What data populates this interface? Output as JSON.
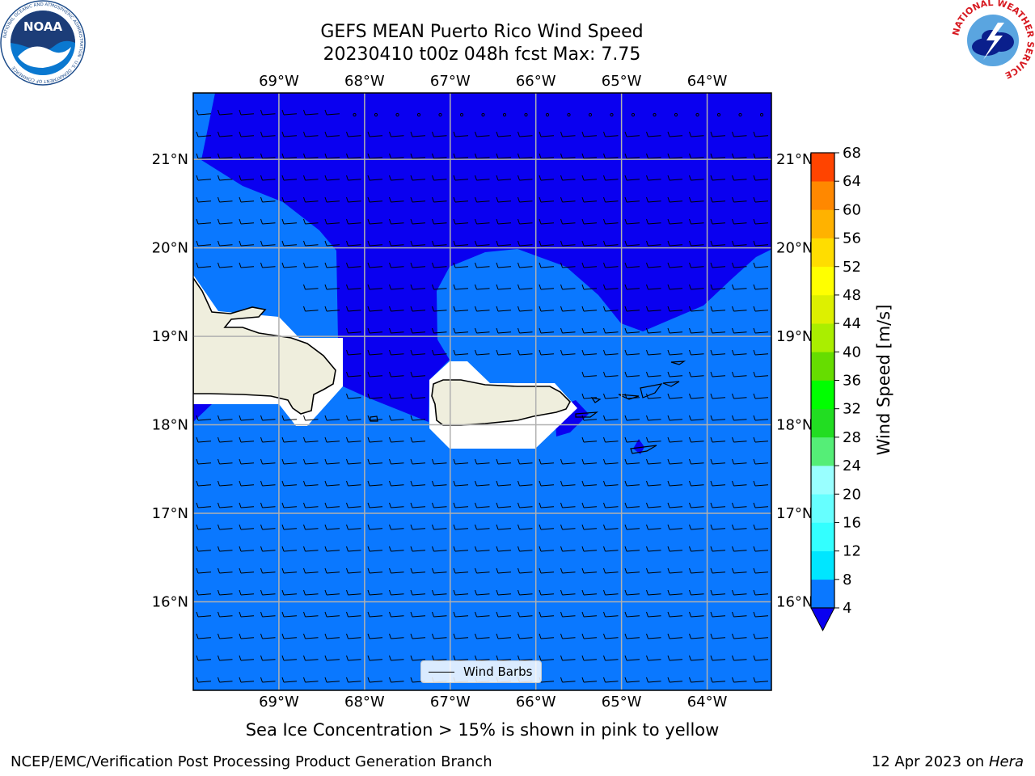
{
  "title": {
    "line1": "GEFS MEAN Puerto Rico Wind Speed",
    "line2": "20230410 t00z 048h fcst   Max: 7.75"
  },
  "map": {
    "lon_range": [
      -70.0,
      -63.25
    ],
    "lat_range": [
      15.0,
      21.75
    ],
    "lon_ticks": [
      {
        "value": -69,
        "label": "69°W"
      },
      {
        "value": -68,
        "label": "68°W"
      },
      {
        "value": -67,
        "label": "67°W"
      },
      {
        "value": -66,
        "label": "66°W"
      },
      {
        "value": -65,
        "label": "65°W"
      },
      {
        "value": -64,
        "label": "64°W"
      }
    ],
    "lat_ticks": [
      {
        "value": 21,
        "label": "21°N"
      },
      {
        "value": 20,
        "label": "20°N"
      },
      {
        "value": 19,
        "label": "19°N"
      },
      {
        "value": 18,
        "label": "18°N"
      },
      {
        "value": 17,
        "label": "17°N"
      },
      {
        "value": 16,
        "label": "16°N"
      }
    ],
    "grid": true,
    "colors": {
      "below_4": "#0a00f0",
      "band_4_8": "#0a78ff",
      "land": "#efeedd",
      "masked": "#ffffff",
      "grid": "#b0b0b0"
    }
  },
  "legend": {
    "label": "Wind Barbs",
    "position": "bottom-center"
  },
  "colorbar": {
    "label": "Wind Speed [m/s]",
    "ticks": [
      "68",
      "64",
      "60",
      "56",
      "52",
      "48",
      "44",
      "40",
      "36",
      "32",
      "28",
      "24",
      "20",
      "16",
      "12",
      "8",
      "4"
    ],
    "levels": [
      4,
      8,
      12,
      16,
      20,
      24,
      28,
      32,
      36,
      40,
      44,
      48,
      52,
      56,
      60,
      64,
      68
    ],
    "band_colors": [
      "#0a78ff",
      "#00e6ff",
      "#33ffff",
      "#66ffff",
      "#99ffff",
      "#55ee77",
      "#22dd22",
      "#00ff00",
      "#66dd00",
      "#aaee00",
      "#ddf000",
      "#ffff00",
      "#ffdd00",
      "#ffb200",
      "#ff8800",
      "#ff4400",
      "#ff0000"
    ],
    "under_color": "#0a00f0"
  },
  "subtitle": "Sea Ice Concentration > 15% is shown in pink to yellow",
  "footer": {
    "left": "NCEP/EMC/Verification Post Processing Product Generation Branch",
    "right_prefix": "12 Apr 2023 on ",
    "right_host": "Hera"
  },
  "logos": {
    "left_text": "NOAA",
    "left_ring_text": "NATIONAL OCEANIC AND ATMOSPHERIC ADMINISTRATION · U.S. DEPARTMENT OF COMMERCE",
    "right_ring_text": "NATIONAL WEATHER SERVICE"
  }
}
